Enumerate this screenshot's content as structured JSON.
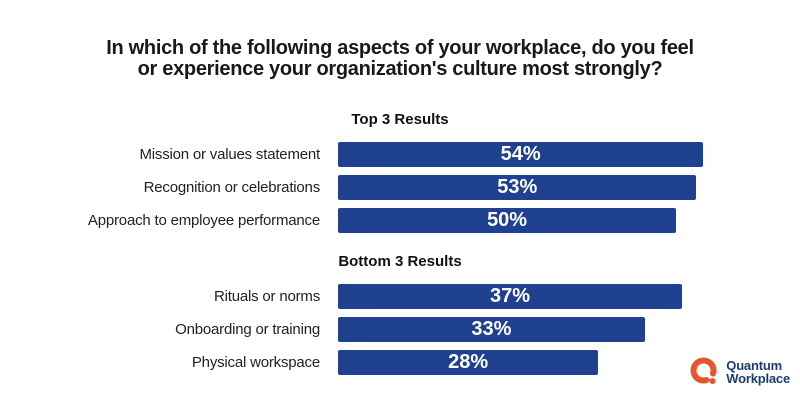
{
  "chart_data": {
    "type": "bar",
    "orientation": "horizontal",
    "title": "In which of the following aspects of your workplace, do you feel or experience your organization's culture most strongly?",
    "title_lines": [
      "In which of the following aspects of your workplace, do you feel",
      "or experience your organization's culture most strongly?"
    ],
    "bar_color": "#1F418F",
    "value_label_color": "#FFFFFF",
    "value_suffix": "%",
    "grid": false,
    "legend": false,
    "sections": [
      {
        "label": "Top 3 Results",
        "axis_max": 55,
        "rows": [
          {
            "label": "Mission or values statement",
            "value": 54,
            "display": "54%"
          },
          {
            "label": "Recognition or celebrations",
            "value": 53,
            "display": "53%"
          },
          {
            "label": "Approach to employee performance",
            "value": 50,
            "display": "50%"
          }
        ]
      },
      {
        "label": "Bottom 3 Results",
        "axis_max": 40,
        "rows": [
          {
            "label": "Rituals or norms",
            "value": 37,
            "display": "37%"
          },
          {
            "label": "Onboarding or training",
            "value": 33,
            "display": "33%"
          },
          {
            "label": "Physical workspace",
            "value": 28,
            "display": "28%"
          }
        ]
      }
    ]
  },
  "branding": {
    "mark_icon": "quantum-q-mark",
    "mark_color": "#E4572E",
    "text_color": "#1C3D6D",
    "name_line1": "Quantum",
    "name_line2": "Workplace"
  }
}
